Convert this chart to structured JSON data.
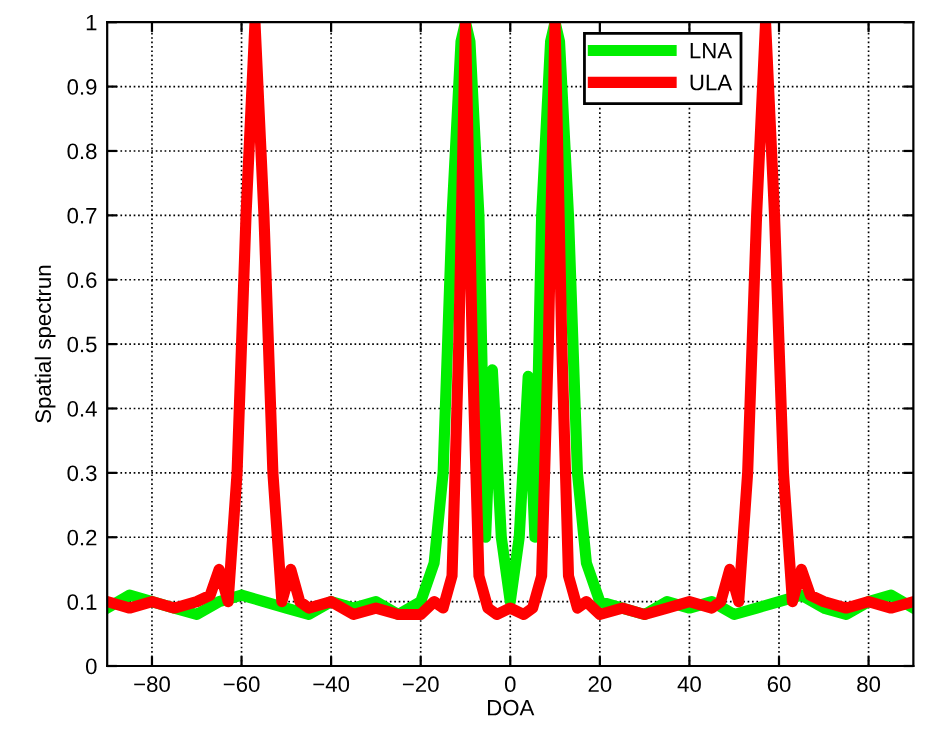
{
  "chart_data": {
    "type": "line",
    "xlabel": "DOA",
    "ylabel": "Spatial spectrun",
    "xlim": [
      -90,
      90
    ],
    "xticks": [
      {
        "value": -80,
        "label": "−80"
      },
      {
        "value": -60,
        "label": "−60"
      },
      {
        "value": -40,
        "label": "−40"
      },
      {
        "value": -20,
        "label": "−20"
      },
      0,
      20,
      40,
      60,
      80
    ],
    "ylim": [
      0,
      1
    ],
    "yticks": [
      0,
      0.1,
      0.2,
      0.3,
      0.4,
      0.5,
      0.6,
      0.7,
      0.8,
      0.9,
      1
    ],
    "grid": true,
    "legend": "top right",
    "line_style": "solid",
    "marker": "none",
    "series": [
      {
        "name": "LNA",
        "color": "#00ee00",
        "x": [
          -90,
          -85,
          -80,
          -75,
          -70,
          -65,
          -60,
          -55,
          -50,
          -45,
          -40,
          -35,
          -30,
          -25,
          -20,
          -17,
          -15,
          -13,
          -11,
          -10,
          -9,
          -7,
          -5.5,
          -4,
          -2,
          0,
          2,
          4,
          5.5,
          7,
          9,
          10,
          11,
          13,
          15,
          17,
          20,
          25,
          30,
          35,
          40,
          45,
          50,
          55,
          60,
          65,
          70,
          75,
          80,
          85,
          90
        ],
        "values": [
          0.09,
          0.11,
          0.1,
          0.09,
          0.08,
          0.1,
          0.11,
          0.1,
          0.09,
          0.08,
          0.1,
          0.09,
          0.1,
          0.08,
          0.1,
          0.16,
          0.3,
          0.7,
          0.97,
          1.0,
          0.97,
          0.7,
          0.2,
          0.46,
          0.2,
          0.1,
          0.2,
          0.45,
          0.2,
          0.7,
          0.97,
          1.0,
          0.97,
          0.7,
          0.3,
          0.16,
          0.1,
          0.09,
          0.08,
          0.1,
          0.09,
          0.1,
          0.08,
          0.09,
          0.1,
          0.11,
          0.09,
          0.08,
          0.1,
          0.11,
          0.09
        ]
      },
      {
        "name": "ULA",
        "color": "#ff0000",
        "x": [
          -90,
          -85,
          -80,
          -75,
          -70,
          -67,
          -65,
          -63,
          -61,
          -59,
          -57,
          -55,
          -53,
          -51,
          -49,
          -47,
          -45,
          -40,
          -35,
          -30,
          -25,
          -20,
          -17,
          -15,
          -13,
          -11.5,
          -10,
          -8.5,
          -7,
          -5,
          -3,
          0,
          3,
          5,
          7,
          8.5,
          10,
          11.5,
          13,
          15,
          17,
          20,
          25,
          30,
          35,
          40,
          45,
          47,
          49,
          51,
          53,
          55,
          57,
          59,
          61,
          63,
          65,
          67,
          70,
          75,
          80,
          85,
          90
        ],
        "values": [
          0.1,
          0.09,
          0.1,
          0.09,
          0.1,
          0.11,
          0.15,
          0.1,
          0.3,
          0.7,
          1.0,
          0.7,
          0.3,
          0.1,
          0.15,
          0.1,
          0.09,
          0.1,
          0.08,
          0.09,
          0.08,
          0.08,
          0.1,
          0.09,
          0.14,
          0.5,
          1.0,
          0.5,
          0.14,
          0.09,
          0.08,
          0.09,
          0.08,
          0.09,
          0.14,
          0.5,
          1.0,
          0.5,
          0.14,
          0.09,
          0.1,
          0.08,
          0.09,
          0.08,
          0.09,
          0.1,
          0.09,
          0.1,
          0.15,
          0.1,
          0.3,
          0.7,
          1.0,
          0.7,
          0.3,
          0.1,
          0.15,
          0.11,
          0.1,
          0.09,
          0.1,
          0.09,
          0.1
        ]
      }
    ]
  }
}
